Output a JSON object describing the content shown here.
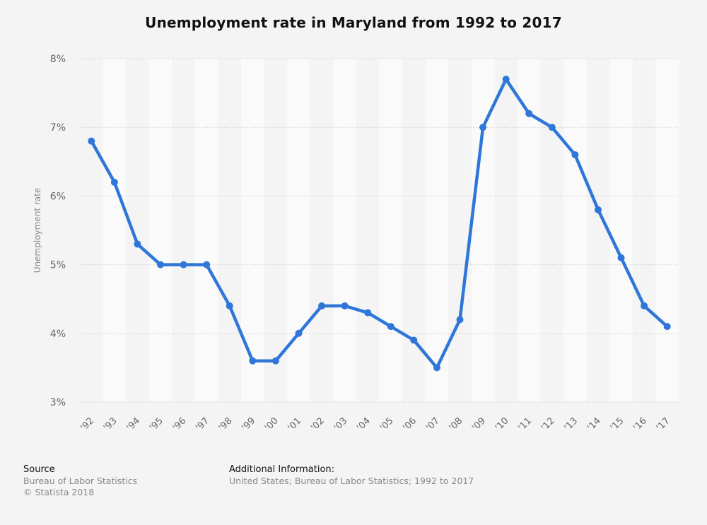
{
  "title": "Unemployment rate in Maryland from 1992 to 2017",
  "chart_data": {
    "type": "line",
    "title": "Unemployment rate in Maryland from 1992 to 2017",
    "ylabel": "Unemployment rate",
    "xlabel": "",
    "categories": [
      "'92",
      "'93",
      "'94",
      "'95",
      "'96",
      "'97",
      "'98",
      "'99",
      "'00",
      "'01",
      "'02",
      "'03",
      "'04",
      "'05",
      "'06",
      "'07",
      "'08",
      "'09",
      "'10",
      "'11",
      "'12",
      "'13",
      "'14",
      "'15",
      "'16",
      "'17"
    ],
    "values": [
      6.8,
      6.2,
      5.3,
      5.0,
      5.0,
      5.0,
      4.4,
      3.6,
      3.6,
      4.0,
      4.4,
      4.4,
      4.3,
      4.1,
      3.9,
      3.5,
      4.2,
      7.0,
      7.7,
      7.2,
      7.0,
      6.6,
      5.8,
      5.1,
      4.4,
      4.1
    ],
    "ylim": [
      3,
      8
    ],
    "yticks": [
      3,
      4,
      5,
      6,
      7,
      8
    ],
    "ytick_labels": [
      "3%",
      "4%",
      "5%",
      "6%",
      "7%",
      "8%"
    ],
    "grid": true,
    "line_color": "#2e77d9"
  },
  "footer": {
    "source_heading": "Source",
    "source_lines": [
      "Bureau of Labor Statistics",
      "© Statista 2018"
    ],
    "info_heading": "Additional Information:",
    "info_lines": [
      "United States; Bureau of Labor Statistics; 1992 to 2017"
    ]
  }
}
